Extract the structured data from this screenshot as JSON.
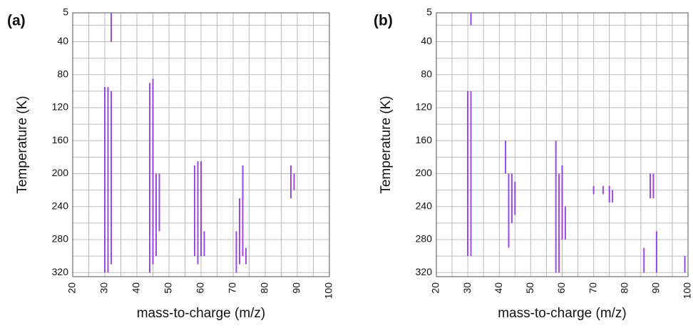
{
  "chart_data": [
    {
      "type": "streak-map",
      "panel_label": "(a)",
      "xlabel": "mass-to-charge (m/z)",
      "ylabel": "Temperature (K)",
      "xlim": [
        20,
        100
      ],
      "ylim": [
        5,
        325
      ],
      "y_inverted": true,
      "xticks": [
        20,
        30,
        40,
        50,
        60,
        70,
        80,
        90,
        100
      ],
      "yticks": [
        5,
        40,
        80,
        120,
        160,
        200,
        240,
        280,
        320
      ],
      "xgrid": [
        25,
        35,
        45,
        55,
        65,
        75,
        85,
        95
      ],
      "ygrid": [
        20,
        60,
        100,
        140,
        180,
        220,
        260,
        300
      ],
      "grid": true,
      "color": "#8a2be2",
      "streaks": {
        "x": [
          30,
          31,
          32,
          32,
          44,
          45,
          46,
          47,
          58,
          59,
          60,
          61,
          71,
          72,
          73,
          74,
          88,
          89
        ],
        "y_start": [
          95,
          95,
          5,
          100,
          90,
          85,
          200,
          200,
          190,
          185,
          185,
          270,
          270,
          230,
          190,
          290,
          190,
          200
        ],
        "y_end": [
          320,
          320,
          40,
          310,
          320,
          310,
          300,
          270,
          300,
          310,
          300,
          300,
          320,
          310,
          300,
          310,
          230,
          220
        ]
      }
    },
    {
      "type": "streak-map",
      "panel_label": "(b)",
      "xlabel": "mass-to-charge (m/z)",
      "ylabel": "Temperature (K)",
      "xlim": [
        20,
        100
      ],
      "ylim": [
        5,
        325
      ],
      "y_inverted": true,
      "xticks": [
        20,
        30,
        40,
        50,
        60,
        70,
        80,
        90,
        100
      ],
      "yticks": [
        5,
        40,
        80,
        120,
        160,
        200,
        240,
        280,
        320
      ],
      "xgrid": [
        25,
        35,
        45,
        55,
        65,
        75,
        85,
        95
      ],
      "ygrid": [
        20,
        60,
        100,
        140,
        180,
        220,
        260,
        300
      ],
      "grid": true,
      "color": "#8a2be2",
      "streaks": {
        "x": [
          30,
          31,
          31,
          42,
          43,
          44,
          45,
          58,
          59,
          60,
          61,
          70,
          73,
          75,
          76,
          86,
          88,
          89,
          90,
          99
        ],
        "y_start": [
          100,
          100,
          5,
          160,
          200,
          200,
          210,
          160,
          200,
          190,
          240,
          215,
          215,
          215,
          220,
          290,
          200,
          200,
          270,
          300
        ],
        "y_end": [
          300,
          300,
          20,
          200,
          290,
          260,
          250,
          320,
          320,
          280,
          280,
          225,
          225,
          235,
          235,
          320,
          230,
          230,
          320,
          320
        ]
      }
    }
  ]
}
